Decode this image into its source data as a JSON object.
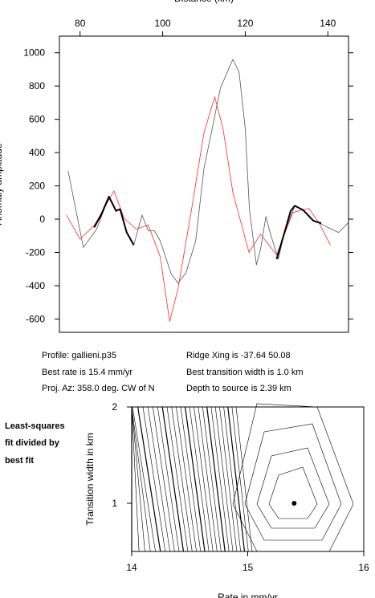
{
  "chart_data": [
    {
      "type": "line",
      "xlabel": "Distance (km)",
      "ylabel": "Anomaly amplitude",
      "xlim": [
        75,
        145
      ],
      "xticks": [
        80,
        100,
        120,
        140
      ],
      "ylim": [
        -680,
        1100
      ],
      "yticks": [
        -600,
        -400,
        -200,
        0,
        200,
        400,
        600,
        800,
        1000
      ],
      "series": [
        {
          "color": "#555555",
          "width": 0.8,
          "x": [
            77.1,
            80.8,
            84,
            87,
            88.7,
            89.7,
            91.3,
            93,
            95,
            96.5,
            98,
            99.4,
            102,
            103.7,
            105.6,
            108,
            110,
            112,
            114,
            117,
            118.5,
            120,
            121,
            122.7,
            123.7,
            125,
            126,
            128,
            129.5,
            132,
            134,
            136.5,
            138,
            140,
            142.6,
            145
          ],
          "values": [
            290,
            -170,
            -60,
            135,
            50,
            60,
            -80,
            -155,
            25,
            -70,
            -70,
            -130,
            -325,
            -385,
            -325,
            -130,
            305,
            545,
            790,
            960,
            885,
            545,
            60,
            -275,
            -180,
            15,
            -80,
            -240,
            -80,
            80,
            55,
            -10,
            -25,
            -50,
            -80,
            -20
          ]
        },
        {
          "color": "#ff2a2a",
          "width": 0.8,
          "x": [
            76.7,
            80,
            83.5,
            88.2,
            90.7,
            93.6,
            96.5,
            99.4,
            101.7,
            103.7,
            107,
            110,
            112.6,
            114.6,
            117,
            120.9,
            123.7,
            127.6,
            131.5,
            135.4,
            137.9,
            140.6
          ],
          "values": [
            25,
            -120,
            -35,
            170,
            5,
            -60,
            -35,
            -225,
            -615,
            -420,
            60,
            520,
            735,
            545,
            160,
            -200,
            -90,
            -215,
            40,
            65,
            -25,
            -155
          ]
        },
        {
          "color": "#000000",
          "width": 2,
          "x": [
            83.4,
            85,
            87,
            88.7,
            89.7,
            91.3,
            93,
            null,
            127.6,
            129.5,
            131,
            132,
            134,
            136.5,
            138.4
          ],
          "values": [
            -50,
            20,
            135,
            50,
            60,
            -80,
            -155,
            null,
            -240,
            -80,
            50,
            80,
            55,
            -10,
            -25
          ]
        }
      ]
    },
    {
      "type": "contour",
      "xlabel": "Rate in mm/yr",
      "ylabel": "Transition width in km",
      "xlim": [
        14,
        16
      ],
      "xticks": [
        14,
        15,
        16
      ],
      "ylim": [
        0.5,
        2
      ],
      "yticks": [
        1,
        2
      ],
      "x": [
        15.4
      ],
      "values": [
        1.0
      ]
    }
  ],
  "profile_info": [
    "Profile: gallieni.p35",
    "Best rate is 15.4 mm/yr",
    "Proj. Az: 358.0 deg. CW of N"
  ],
  "ridge_info": [
    "Ridge Xing is -37.64 50.08",
    "Best transition width is 1.0 km",
    "Depth to source is   2.39 km"
  ],
  "side_note": [
    "Least-squares",
    "fit divided by",
    "best fit"
  ]
}
